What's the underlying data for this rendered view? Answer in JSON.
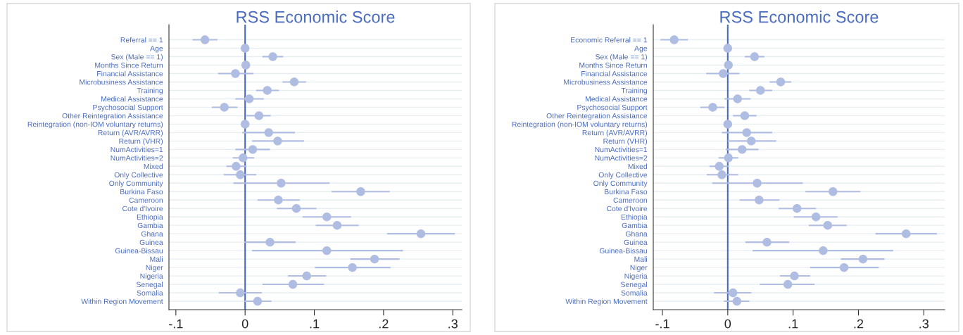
{
  "chart_data": [
    {
      "type": "scatter",
      "title": "RSS Economic Score",
      "orientation": "horizontal",
      "grid": "y",
      "marker": "circle",
      "categories": [
        "Referral == 1",
        "Age",
        "Sex (Male == 1)",
        "Months Since Return",
        "Financial Assistance",
        "Microbusiness Assistance",
        "Training",
        "Medical Assistance",
        "Psychosocial Support",
        "Other Reintegration Assistance",
        "Reintegration (non-IOM voluntary returns)",
        "Return (AVR/AVRR)",
        "Return (VHR)",
        "NumActivities=1",
        "NumActivities=2",
        "Mixed",
        "Only Collective",
        "Only Community",
        "Burkina Faso",
        "Cameroon",
        "Cote d'Ivoire",
        "Ethiopia",
        "Gambia",
        "Ghana",
        "Guinea",
        "Guinea-Bissau",
        "Mali",
        "Niger",
        "Nigeria",
        "Senegal",
        "Somalia",
        "Within Region Movement"
      ],
      "series": [
        {
          "color": "#b0bde2",
          "values": [
            -0.058,
            0,
            0.04,
            0.001,
            -0.014,
            0.071,
            0.032,
            0.006,
            -0.03,
            0.02,
            0,
            0.034,
            0.047,
            0.011,
            -0.003,
            -0.013,
            -0.007,
            0.052,
            0.167,
            0.048,
            0.074,
            0.118,
            0.133,
            0.254,
            0.036,
            0.118,
            0.187,
            0.155,
            0.089,
            0.069,
            -0.007,
            0.018
          ],
          "errors": [
            [
              -0.076,
              -0.04
            ],
            null,
            [
              0.025,
              0.055
            ],
            null,
            [
              -0.039,
              0.012
            ],
            [
              0.054,
              0.088
            ],
            [
              0.016,
              0.049
            ],
            [
              -0.014,
              0.027
            ],
            [
              -0.048,
              -0.011
            ],
            [
              0.002,
              0.037
            ],
            null,
            [
              -0.004,
              0.072
            ],
            [
              0.01,
              0.085
            ],
            [
              -0.014,
              0.036
            ],
            [
              -0.018,
              0.013
            ],
            [
              -0.027,
              0.002
            ],
            [
              -0.031,
              0.016
            ],
            [
              -0.017,
              0.122
            ],
            [
              0.125,
              0.209
            ],
            [
              0.018,
              0.079
            ],
            [
              0.046,
              0.103
            ],
            [
              0.083,
              0.153
            ],
            [
              0.102,
              0.164
            ],
            [
              0.205,
              0.303
            ],
            [
              -0.001,
              0.073
            ],
            [
              0.01,
              0.228
            ],
            [
              0.152,
              0.223
            ],
            [
              0.101,
              0.21
            ],
            [
              0.062,
              0.117
            ],
            [
              0.025,
              0.114
            ],
            [
              -0.038,
              0.024
            ],
            [
              -0.001,
              0.038
            ]
          ]
        }
      ],
      "xlim": [
        -0.11,
        0.313
      ],
      "xticks": [
        {
          "value": -0.1,
          "label": "-.1"
        },
        0,
        {
          "value": 0.1,
          "label": ".1"
        },
        {
          "value": 0.2,
          "label": ".2"
        },
        {
          "value": 0.3,
          "label": ".3"
        }
      ],
      "ref_lines": [
        {
          "axis": "x",
          "value": 0,
          "color": "#4a6cc0"
        }
      ]
    },
    {
      "type": "scatter",
      "title": "RSS Economic Score",
      "orientation": "horizontal",
      "grid": "y",
      "marker": "circle",
      "categories": [
        "Economic Referral == 1",
        "Age",
        "Sex (Male == 1)",
        "Months Since Return",
        "Financial Assistance",
        "Microbusiness Assistance",
        "Training",
        "Medical Assistance",
        "Psychosocial Support",
        "Other Reintegration Assistance",
        "Reintegration (non-IOM voluntary returns)",
        "Return (AVR/AVRR)",
        "Return (VHR)",
        "NumActivities=1",
        "NumActivities=2",
        "Mixed",
        "Only Collective",
        "Only Community",
        "Burkina Faso",
        "Cameroon",
        "Cote d'Ivoire",
        "Ethiopia",
        "Gambia",
        "Ghana",
        "Guinea",
        "Guinea-Bissau",
        "Mali",
        "Niger",
        "Nigeria",
        "Senegal",
        "Somalia",
        "Within Region Movement"
      ],
      "series": [
        {
          "color": "#b0bde2",
          "values": [
            -0.082,
            0,
            0.041,
            0.001,
            -0.007,
            0.081,
            0.05,
            0.015,
            -0.023,
            0.026,
            0,
            0.029,
            0.036,
            0.022,
            0.001,
            -0.013,
            -0.009,
            0.045,
            0.161,
            0.048,
            0.106,
            0.135,
            0.153,
            0.273,
            0.06,
            0.146,
            0.207,
            0.178,
            0.102,
            0.092,
            0.008,
            0.014
          ],
          "errors": [
            [
              -0.103,
              -0.061
            ],
            null,
            [
              0.026,
              0.056
            ],
            null,
            [
              -0.033,
              0.018
            ],
            [
              0.064,
              0.097
            ],
            [
              0.033,
              0.068
            ],
            [
              -0.005,
              0.035
            ],
            [
              -0.042,
              -0.005
            ],
            [
              0.008,
              0.044
            ],
            null,
            [
              -0.009,
              0.068
            ],
            [
              0.0,
              0.074
            ],
            [
              -0.003,
              0.047
            ],
            [
              -0.014,
              0.016
            ],
            [
              -0.028,
              0.001
            ],
            [
              -0.032,
              0.016
            ],
            [
              -0.024,
              0.115
            ],
            [
              0.119,
              0.203
            ],
            [
              0.018,
              0.079
            ],
            [
              0.078,
              0.135
            ],
            [
              0.101,
              0.168
            ],
            [
              0.124,
              0.182
            ],
            [
              0.226,
              0.32
            ],
            [
              0.027,
              0.094
            ],
            [
              0.038,
              0.253
            ],
            [
              0.173,
              0.24
            ],
            [
              0.126,
              0.231
            ],
            [
              0.08,
              0.126
            ],
            [
              0.049,
              0.133
            ],
            [
              -0.021,
              0.036
            ],
            [
              -0.006,
              0.033
            ]
          ]
        }
      ],
      "xlim": [
        -0.114,
        0.332
      ],
      "xticks": [
        {
          "value": -0.1,
          "label": "-.1"
        },
        0,
        {
          "value": 0.1,
          "label": ".1"
        },
        {
          "value": 0.2,
          "label": ".2"
        },
        {
          "value": 0.3,
          "label": ".3"
        }
      ],
      "ref_lines": [
        {
          "axis": "x",
          "value": 0,
          "color": "#4a6cc0"
        }
      ]
    }
  ]
}
